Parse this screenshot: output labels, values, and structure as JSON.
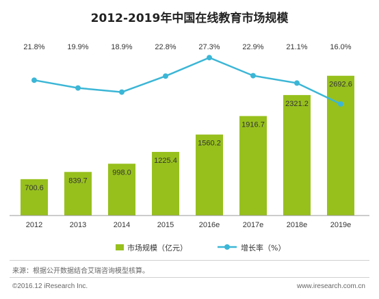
{
  "title": "2012-2019年中国在线教育市场规模",
  "chart_data": {
    "type": "bar",
    "categories": [
      "2012",
      "2013",
      "2014",
      "2015",
      "2016e",
      "2017e",
      "2018e",
      "2019e"
    ],
    "series": [
      {
        "name": "市场规模（亿元）",
        "type": "bar",
        "values": [
          700.6,
          839.7,
          998.0,
          1225.4,
          1560.2,
          1916.7,
          2321.2,
          2692.6
        ],
        "labels": [
          "700.6",
          "839.7",
          "998.0",
          "1225.4",
          "1560.2",
          "1916.7",
          "2321.2",
          "2692.6"
        ],
        "color": "#97c01d"
      },
      {
        "name": "增长率（%）",
        "type": "line",
        "values": [
          21.8,
          19.9,
          18.9,
          22.8,
          27.3,
          22.9,
          21.1,
          16.0
        ],
        "labels": [
          "21.8%",
          "19.9%",
          "18.9%",
          "22.8%",
          "27.3%",
          "22.9%",
          "21.1%",
          "16.0%"
        ],
        "color": "#3bb6d6"
      }
    ],
    "y_bar_range": [
      0,
      2900
    ],
    "y_line_range": [
      0,
      30
    ],
    "grid": false,
    "legend_position": "bottom"
  },
  "legend": {
    "bar_label": "市场规模（亿元）",
    "line_label": "增长率（%）"
  },
  "footer": {
    "source": "来源：根据公开数据结合艾瑞咨询模型核算。",
    "copyright": "©2016.12 iResearch Inc.",
    "website": "www.iresearch.com.cn"
  }
}
